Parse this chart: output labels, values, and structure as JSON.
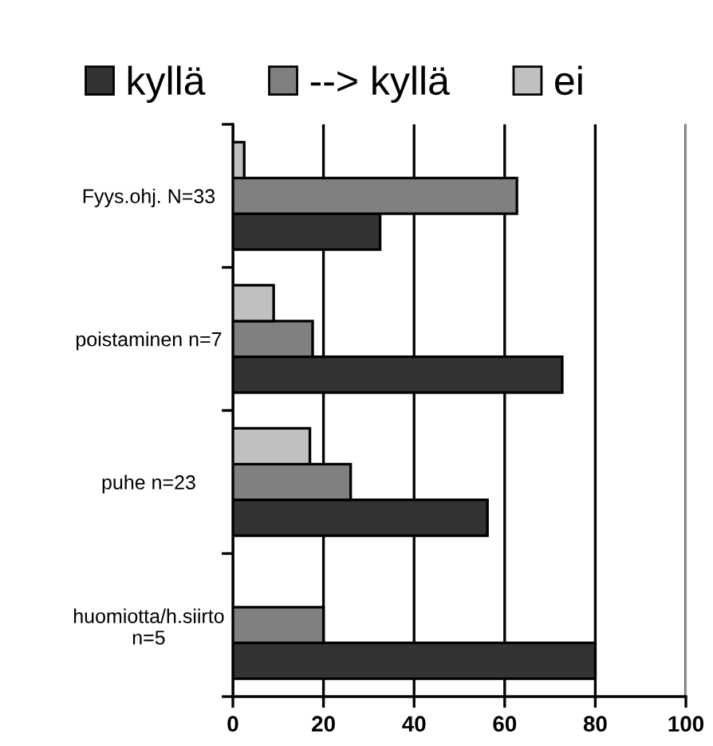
{
  "chart_data": {
    "type": "bar",
    "orientation": "horizontal",
    "categories": [
      "Fyys.ohj. N=33",
      "poistaminen n=7",
      "puhe n=23",
      "huomiotta/h.siirto\nn=5"
    ],
    "series": [
      {
        "name": "kyllä",
        "color": "#333333",
        "values": [
          32.5,
          72.7,
          56.2,
          80
        ]
      },
      {
        "name": "--> kyllä",
        "color": "#808080",
        "values": [
          62.7,
          17.6,
          26,
          20
        ]
      },
      {
        "name": "ei",
        "color": "#c0c0c0",
        "values": [
          2.5,
          9,
          17,
          null
        ]
      }
    ],
    "xlim": [
      0,
      100
    ],
    "xticks": [
      0,
      20,
      40,
      60,
      80,
      100
    ],
    "grid": "x",
    "legend": "top"
  }
}
